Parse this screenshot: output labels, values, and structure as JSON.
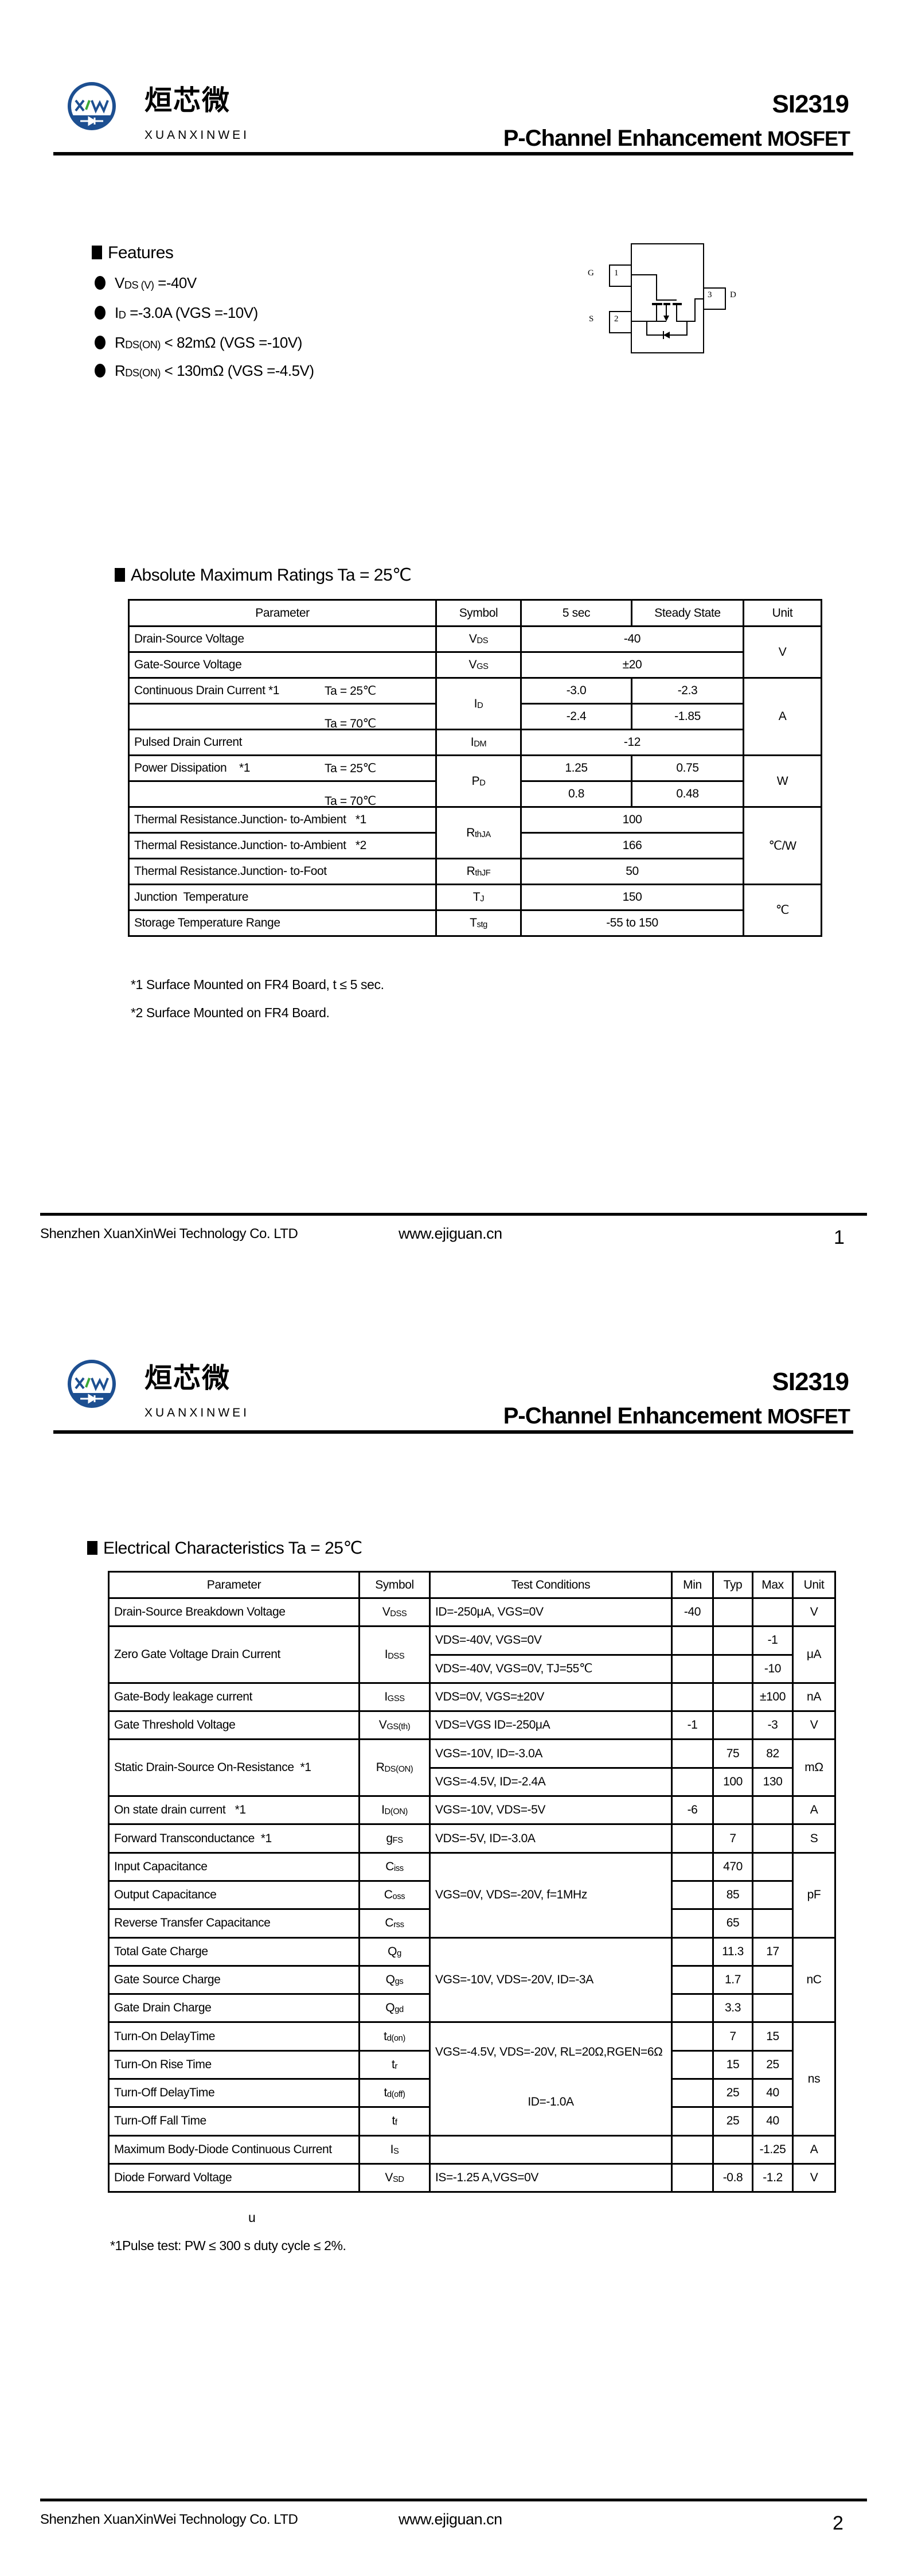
{
  "header": {
    "part_number": "SI2319",
    "title_main": "P-Channel Enhancement ",
    "title_suffix": "MOSFET",
    "logo_cjk": "烜芯微",
    "logo_latin": "XUANXINWEI",
    "logo_mark": "XW",
    "brand_color": "#1d4f91",
    "accent_color": "#3aa935"
  },
  "footer": {
    "company": "Shenzhen XuanXinWei Technology Co. LTD",
    "website": "www.ejiguan.cn",
    "page1": "1",
    "page2": "2"
  },
  "features": {
    "title": "Features",
    "items": [
      {
        "sym": "V",
        "sub": "DS (V)",
        "text": " =-40V"
      },
      {
        "sym": "I",
        "sub": "D",
        "text": " =-3.0A (VGS =-10V)"
      },
      {
        "sym": "R",
        "sub": "DS(ON)",
        "text": " < 82mΩ  (VGS =-10V)"
      },
      {
        "sym": "R",
        "sub": "DS(ON)",
        "text": " < 130mΩ  (VGS =-4.5V)"
      }
    ]
  },
  "diagram": {
    "pins": [
      {
        "num": "1",
        "name": "G"
      },
      {
        "num": "2",
        "name": "S"
      },
      {
        "num": "3",
        "name": "D"
      }
    ]
  },
  "abs_max": {
    "title": "Absolute Maximum Ratings Ta = 25℃",
    "headers": [
      "Parameter",
      "Symbol",
      "5 sec",
      "Steady State",
      "Unit"
    ],
    "rows": [
      {
        "param": "Drain-Source Voltage",
        "sym": "V",
        "sub": "DS",
        "v": "-40",
        "unit": "V"
      },
      {
        "param": "Gate-Source Voltage",
        "sym": "V",
        "sub": "GS",
        "v": "±20"
      },
      {
        "param": "Continuous Drain Current *1",
        "cond": "Ta = 25℃",
        "sym": "I",
        "sub": "D",
        "v5": "-3.0",
        "vss": "-2.3",
        "unit": "A"
      },
      {
        "cond": "Ta = 70℃",
        "v5": "-2.4",
        "vss": "-1.85"
      },
      {
        "param": "Pulsed Drain Current",
        "sym": "I",
        "sub": "DM",
        "v": "-12"
      },
      {
        "param": "Power Dissipation    *1",
        "cond": "Ta = 25℃",
        "sym": "P",
        "sub": "D",
        "v5": "1.25",
        "vss": "0.75",
        "unit": "W"
      },
      {
        "cond": "Ta = 70℃",
        "v5": "0.8",
        "vss": "0.48"
      },
      {
        "param": "Thermal Resistance.Junction- to-Ambient   *1",
        "sym": "R",
        "sub": "thJA",
        "v": "100",
        "unit": "℃/W"
      },
      {
        "param": "Thermal Resistance.Junction- to-Ambient   *2",
        "v": "166"
      },
      {
        "param": "Thermal Resistance.Junction- to-Foot",
        "sym": "R",
        "sub": "thJF",
        "v": "50"
      },
      {
        "param": "Junction  Temperature",
        "sym": "T",
        "sub": "J",
        "v": "150",
        "unit": "℃"
      },
      {
        "param": "Storage Temperature Range",
        "sym": "T",
        "sub": "stg",
        "v": "-55 to 150"
      }
    ],
    "notes": [
      "*1 Surface Mounted on FR4 Board, t ≤  5 sec.",
      "*2 Surface Mounted on FR4 Board."
    ]
  },
  "elec": {
    "title": "Electrical Characteristics Ta = 25℃",
    "headers": [
      "Parameter",
      "Symbol",
      "Test Conditions",
      "Min",
      "Typ",
      "Max",
      "Unit"
    ],
    "rows": [
      {
        "param": "Drain-Source Breakdown Voltage",
        "sym": "V",
        "sub": "DSS",
        "cond": "ID=-250μA, VGS=0V",
        "min": "-40",
        "unit": "V"
      },
      {
        "param": "Zero Gate Voltage Drain Current",
        "sym": "I",
        "sub": "DSS",
        "cond": "VDS=-40V, VGS=0V",
        "max": "-1",
        "unit": "μA"
      },
      {
        "cond": "VDS=-40V, VGS=0V, TJ=55℃",
        "max": "-10"
      },
      {
        "param": "Gate-Body leakage current",
        "sym": "I",
        "sub": "GSS",
        "cond": "VDS=0V, VGS=±20V",
        "max": "±100",
        "unit": "nA"
      },
      {
        "param": "Gate Threshold Voltage",
        "sym": "V",
        "sub": "GS(th)",
        "cond": "VDS=VGS ID=-250μA",
        "min": "-1",
        "max": "-3",
        "unit": "V"
      },
      {
        "param": "Static Drain-Source On-Resistance  *1",
        "sym": "R",
        "sub": "DS(ON)",
        "cond": "VGS=-10V, ID=-3.0A",
        "typ": "75",
        "max": "82",
        "unit": "mΩ"
      },
      {
        "cond": "VGS=-4.5V, ID=-2.4A",
        "typ": "100",
        "max": "130"
      },
      {
        "param": "On state drain current   *1",
        "sym": "I",
        "sub": "D(ON)",
        "cond": "VGS=-10V, VDS=-5V",
        "min": "-6",
        "unit": "A"
      },
      {
        "param": "Forward Transconductance  *1",
        "sym": "g",
        "sub": "FS",
        "cond": "VDS=-5V, ID=-3.0A",
        "typ": "7",
        "unit": "S"
      },
      {
        "param": "Input Capacitance",
        "sym": "C",
        "sub": "iss",
        "cond": "VGS=0V, VDS=-20V, f=1MHz",
        "typ": "470",
        "unit": "pF"
      },
      {
        "param": "Output Capacitance",
        "sym": "C",
        "sub": "oss",
        "typ": "85"
      },
      {
        "param": "Reverse Transfer Capacitance",
        "sym": "C",
        "sub": "rss",
        "typ": "65"
      },
      {
        "param": "Total Gate Charge",
        "sym": "Q",
        "sub": "g",
        "cond": "VGS=-10V, VDS=-20V, ID=-3A",
        "typ": "11.3",
        "max": "17",
        "unit": "nC"
      },
      {
        "param": "Gate Source Charge",
        "sym": "Q",
        "sub": "gs",
        "typ": "1.7"
      },
      {
        "param": "Gate Drain Charge",
        "sym": "Q",
        "sub": "gd",
        "typ": "3.3"
      },
      {
        "param": "Turn-On DelayTime",
        "sym": "t",
        "sub": "d(on)",
        "cond": "VGS=-4.5V, VDS=-20V, RL=20Ω,RGEN=6Ω",
        "cond2": "ID=-1.0A",
        "typ": "7",
        "max": "15",
        "unit": "ns"
      },
      {
        "param": "Turn-On Rise Time",
        "sym": "t",
        "sub": "r",
        "typ": "15",
        "max": "25"
      },
      {
        "param": "Turn-Off DelayTime",
        "sym": "t",
        "sub": "d(off)",
        "typ": "25",
        "max": "40"
      },
      {
        "param": "Turn-Off Fall Time",
        "sym": "t",
        "sub": "f",
        "typ": "25",
        "max": "40"
      },
      {
        "param": "Maximum Body-Diode Continuous Current",
        "sym": "I",
        "sub": "S",
        "max": "-1.25",
        "unit": "A"
      },
      {
        "param": "Diode Forward Voltage",
        "sym": "V",
        "sub": "SD",
        "cond": "IS=-1.25 A,VGS=0V",
        "typ": "-0.8",
        "max": "-1.2",
        "unit": "V"
      }
    ],
    "stray_char": "u",
    "note": "*1Pulse test: PW ≤ 300  s duty cycle ≤ 2%."
  }
}
